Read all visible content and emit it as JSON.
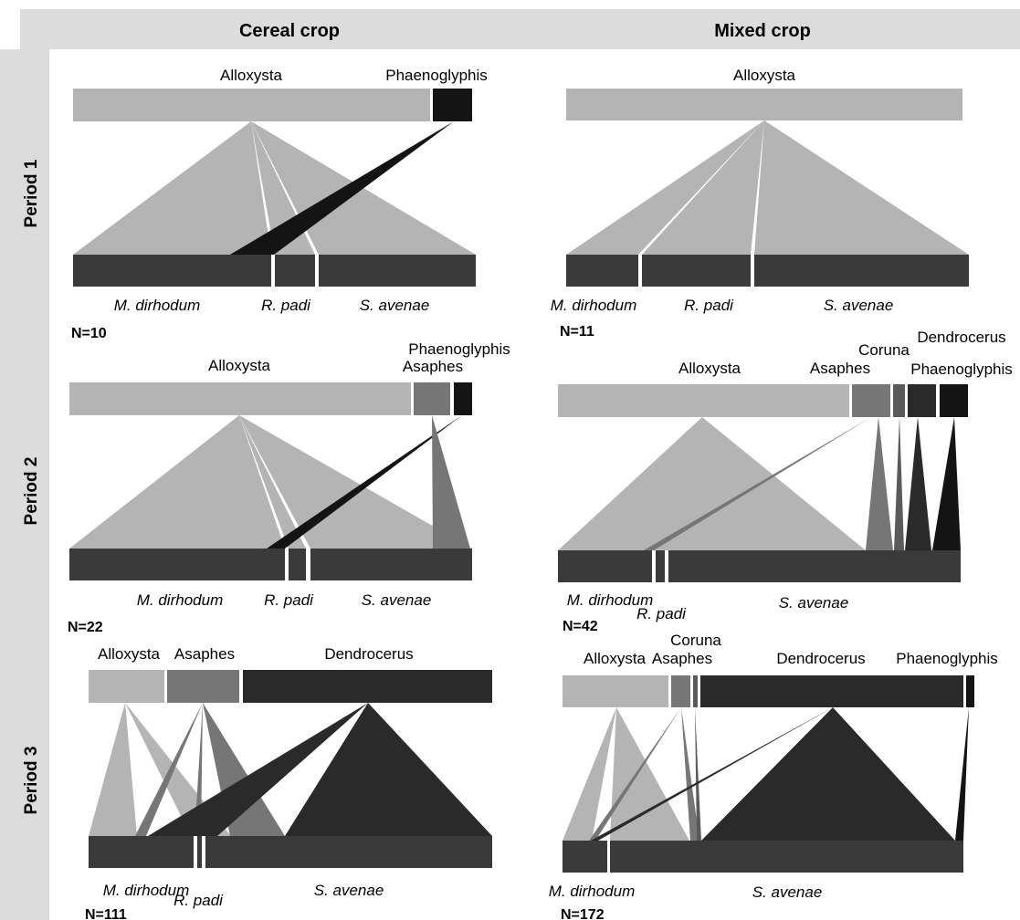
{
  "columns": [
    "Cereal crop",
    "Mixed crop"
  ],
  "rows": [
    "Period 1",
    "Period 2",
    "Period 3"
  ],
  "colors": {
    "header_band": "#dcdcdc",
    "Alloxysta": "#b4b4b4",
    "Asaphes": "#767676",
    "Coruna": "#5a5a5a",
    "Dendrocerus": "#2a2a2a",
    "Phaenoglyphis": "#141414",
    "aphid_bar": "#3a3a3a"
  },
  "panels": [
    {
      "crop": "Cereal crop",
      "period": "Period 1",
      "N": "N=10",
      "parasitoids": [
        "Alloxysta",
        "Phaenoglyphis"
      ],
      "aphids": [
        "M. dirhodum",
        "R. padi",
        "S. avenae"
      ],
      "links": [
        {
          "from": "Alloxysta",
          "to": "M. dirhodum"
        },
        {
          "from": "Alloxysta",
          "to": "R. padi"
        },
        {
          "from": "Alloxysta",
          "to": "S. avenae"
        },
        {
          "from": "Phaenoglyphis",
          "to": "M. dirhodum"
        }
      ]
    },
    {
      "crop": "Mixed crop",
      "period": "Period 1",
      "N": "N=11",
      "parasitoids": [
        "Alloxysta"
      ],
      "aphids": [
        "M. dirhodum",
        "R. padi",
        "S. avenae"
      ],
      "links": [
        {
          "from": "Alloxysta",
          "to": "M. dirhodum"
        },
        {
          "from": "Alloxysta",
          "to": "R. padi"
        },
        {
          "from": "Alloxysta",
          "to": "S. avenae"
        }
      ]
    },
    {
      "crop": "Cereal crop",
      "period": "Period 2",
      "N": "N=22",
      "parasitoids": [
        "Alloxysta",
        "Asaphes",
        "Phaenoglyphis"
      ],
      "aphids": [
        "M. dirhodum",
        "R. padi",
        "S. avenae"
      ],
      "links": [
        {
          "from": "Alloxysta",
          "to": "M. dirhodum"
        },
        {
          "from": "Alloxysta",
          "to": "R. padi"
        },
        {
          "from": "Alloxysta",
          "to": "S. avenae"
        },
        {
          "from": "Phaenoglyphis",
          "to": "M. dirhodum"
        },
        {
          "from": "Asaphes",
          "to": "S. avenae"
        }
      ]
    },
    {
      "crop": "Mixed crop",
      "period": "Period 2",
      "N": "N=42",
      "parasitoids": [
        "Alloxysta",
        "Asaphes",
        "Coruna",
        "Dendrocerus",
        "Phaenoglyphis"
      ],
      "aphids": [
        "M. dirhodum",
        "R. padi",
        "S. avenae"
      ],
      "links": [
        {
          "from": "Alloxysta",
          "to": "M. dirhodum"
        },
        {
          "from": "Alloxysta",
          "to": "R. padi"
        },
        {
          "from": "Alloxysta",
          "to": "S. avenae"
        },
        {
          "from": "Asaphes",
          "to": "M. dirhodum"
        },
        {
          "from": "Asaphes",
          "to": "S. avenae"
        },
        {
          "from": "Coruna",
          "to": "S. avenae"
        },
        {
          "from": "Dendrocerus",
          "to": "S. avenae"
        },
        {
          "from": "Phaenoglyphis",
          "to": "S. avenae"
        }
      ]
    },
    {
      "crop": "Cereal crop",
      "period": "Period 3",
      "N": "N=111",
      "parasitoids": [
        "Alloxysta",
        "Asaphes",
        "Dendrocerus"
      ],
      "aphids": [
        "M. dirhodum",
        "R. padi",
        "S. avenae"
      ],
      "links": [
        {
          "from": "Alloxysta",
          "to": "M. dirhodum"
        },
        {
          "from": "Alloxysta",
          "to": "S. avenae"
        },
        {
          "from": "Asaphes",
          "to": "M. dirhodum"
        },
        {
          "from": "Asaphes",
          "to": "R. padi"
        },
        {
          "from": "Asaphes",
          "to": "S. avenae"
        },
        {
          "from": "Dendrocerus",
          "to": "M. dirhodum"
        },
        {
          "from": "Dendrocerus",
          "to": "S. avenae"
        }
      ]
    },
    {
      "crop": "Mixed crop",
      "period": "Period 3",
      "N": "N=172",
      "parasitoids": [
        "Alloxysta",
        "Asaphes",
        "Coruna",
        "Dendrocerus",
        "Phaenoglyphis"
      ],
      "aphids": [
        "M. dirhodum",
        "S. avenae"
      ],
      "links": [
        {
          "from": "Alloxysta",
          "to": "M. dirhodum"
        },
        {
          "from": "Alloxysta",
          "to": "S. avenae"
        },
        {
          "from": "Asaphes",
          "to": "M. dirhodum"
        },
        {
          "from": "Asaphes",
          "to": "S. avenae"
        },
        {
          "from": "Coruna",
          "to": "S. avenae"
        },
        {
          "from": "Dendrocerus",
          "to": "M. dirhodum"
        },
        {
          "from": "Dendrocerus",
          "to": "S. avenae"
        },
        {
          "from": "Phaenoglyphis",
          "to": "S. avenae"
        }
      ]
    }
  ]
}
